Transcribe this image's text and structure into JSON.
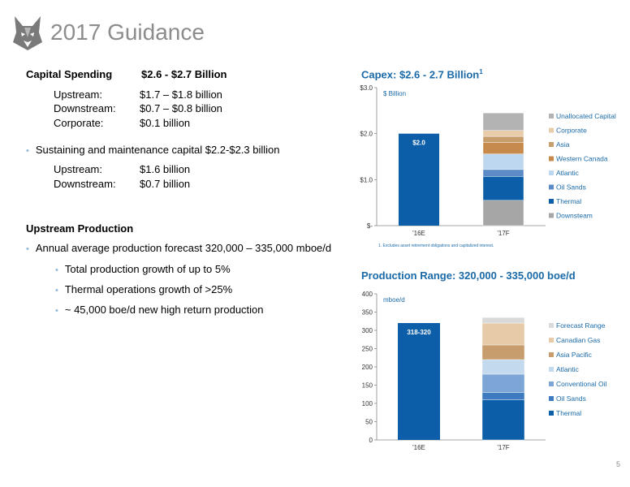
{
  "slide": {
    "title": "2017 Guidance",
    "page_number": "5",
    "capital": {
      "label": "Capital Spending",
      "value": "$2.6 - $2.7 Billion",
      "rows": [
        {
          "k": "Upstream:",
          "v": "$1.7 – $1.8 billion"
        },
        {
          "k": "Downstream:",
          "v": "$0.7 – $0.8 billion"
        },
        {
          "k": "Corporate:",
          "v": "$0.1 billion"
        }
      ],
      "sustaining_bullet": "Sustaining and maintenance capital $2.2-$2.3 billion",
      "sustaining_rows": [
        {
          "k": "Upstream:",
          "v": "$1.6 billion"
        },
        {
          "k": "Downstream:",
          "v": "$0.7 billion"
        }
      ]
    },
    "production": {
      "label": "Upstream Production",
      "bullet": "Annual average production forecast  320,000 – 335,000 mboe/d",
      "sub_bullets": [
        "Total production growth of up to 5%",
        "Thermal operations growth of >25%",
        "~ 45,000 boe/d new high return production"
      ]
    }
  },
  "chart_data": [
    {
      "type": "bar",
      "stacked": true,
      "title": "Capex:  $2.6 - 2.7 Billion",
      "title_sup": "1",
      "ylabel": "$ Billion",
      "categories": [
        "'16E",
        "'17F"
      ],
      "ylim": [
        0,
        3
      ],
      "yticks": [
        {
          "value": 0,
          "label": "$-"
        },
        {
          "value": 1,
          "label": "$1.0"
        },
        {
          "value": 2,
          "label": "$2.0"
        },
        {
          "value": 3,
          "label": "$3.0"
        }
      ],
      "total_bar": {
        "category": "'16E",
        "value": 2.0,
        "label": "$2.0",
        "color": "#0d5ea8"
      },
      "series": [
        {
          "name": "Downsteam",
          "color": "#a6a6a6",
          "values": [
            null,
            0.55
          ]
        },
        {
          "name": "Thermal",
          "color": "#0d5ea8",
          "values": [
            null,
            0.52
          ]
        },
        {
          "name": "Oil Sands",
          "color": "#5b8cc8",
          "values": [
            null,
            0.15
          ]
        },
        {
          "name": "Atlantic",
          "color": "#bcd7ef",
          "values": [
            null,
            0.34
          ]
        },
        {
          "name": "Western Canada",
          "color": "#c58a4c",
          "values": [
            null,
            0.25
          ]
        },
        {
          "name": "Asia",
          "color": "#c89d6d",
          "values": [
            null,
            0.13
          ]
        },
        {
          "name": "Corporate",
          "color": "#e8cba8",
          "values": [
            null,
            0.13
          ]
        },
        {
          "name": "Unallocated Capital",
          "color": "#b3b3b3",
          "values": [
            null,
            0.38
          ]
        }
      ],
      "legend_order": [
        "Unallocated Capital",
        "Corporate",
        "Asia",
        "Western Canada",
        "Atlantic",
        "Oil Sands",
        "Thermal",
        "Downsteam"
      ],
      "footnote": "1. Excludes asset retirement obligations and capitalized interest."
    },
    {
      "type": "bar",
      "stacked": true,
      "title": "Production Range: 320,000 - 335,000 boe/d",
      "ylabel": "mboe/d",
      "categories": [
        "'16E",
        "'17F"
      ],
      "ylim": [
        0,
        400
      ],
      "yticks": [
        {
          "value": 0,
          "label": "0"
        },
        {
          "value": 50,
          "label": "50"
        },
        {
          "value": 100,
          "label": "100"
        },
        {
          "value": 150,
          "label": "150"
        },
        {
          "value": 200,
          "label": "200"
        },
        {
          "value": 250,
          "label": "250"
        },
        {
          "value": 300,
          "label": "300"
        },
        {
          "value": 350,
          "label": "350"
        },
        {
          "value": 400,
          "label": "400"
        }
      ],
      "total_bar": {
        "category": "'16E",
        "value": 320,
        "label": "318-320",
        "color": "#0d5ea8"
      },
      "series": [
        {
          "name": "Thermal",
          "color": "#0d5ea8",
          "values": [
            null,
            110
          ]
        },
        {
          "name": "Oil Sands",
          "color": "#3e7bc0",
          "values": [
            null,
            20
          ]
        },
        {
          "name": "Conventional Oil",
          "color": "#7da6d6",
          "values": [
            null,
            50
          ]
        },
        {
          "name": "Atlantic",
          "color": "#c3d9ee",
          "values": [
            null,
            40
          ]
        },
        {
          "name": "Asia Pacific",
          "color": "#c89d6d",
          "values": [
            null,
            40
          ]
        },
        {
          "name": "Canadian Gas",
          "color": "#e7cba9",
          "values": [
            null,
            60
          ]
        },
        {
          "name": "Forecast Range",
          "color": "#d9d9d9",
          "values": [
            null,
            15
          ]
        }
      ],
      "legend_order": [
        "Forecast Range",
        "Canadian Gas",
        "Asia Pacific",
        "Atlantic",
        "Conventional Oil",
        "Oil Sands",
        "Thermal"
      ]
    }
  ]
}
